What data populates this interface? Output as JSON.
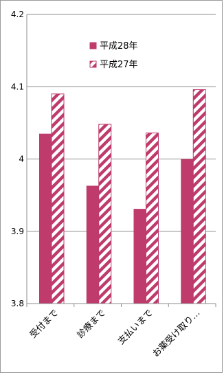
{
  "chart_data": {
    "type": "bar",
    "categories": [
      "受付まで",
      "診療まで",
      "支払いまで",
      "お薬受け取り…"
    ],
    "series": [
      {
        "name": "平成28年",
        "values": [
          4.035,
          3.963,
          3.931,
          4.0
        ],
        "color": "#be3b6c",
        "pattern": "solid"
      },
      {
        "name": "平成27年",
        "values": [
          4.09,
          4.048,
          4.036,
          4.096
        ],
        "color": "#be3b6c",
        "pattern": "diagonal-stripes"
      }
    ],
    "ylim": [
      3.8,
      4.2
    ],
    "yticks": [
      "3.8",
      "3.9",
      "4",
      "4.1",
      "4.2"
    ],
    "grid": true,
    "legend_position": "top-right",
    "title": "",
    "xlabel": "",
    "ylabel": ""
  }
}
